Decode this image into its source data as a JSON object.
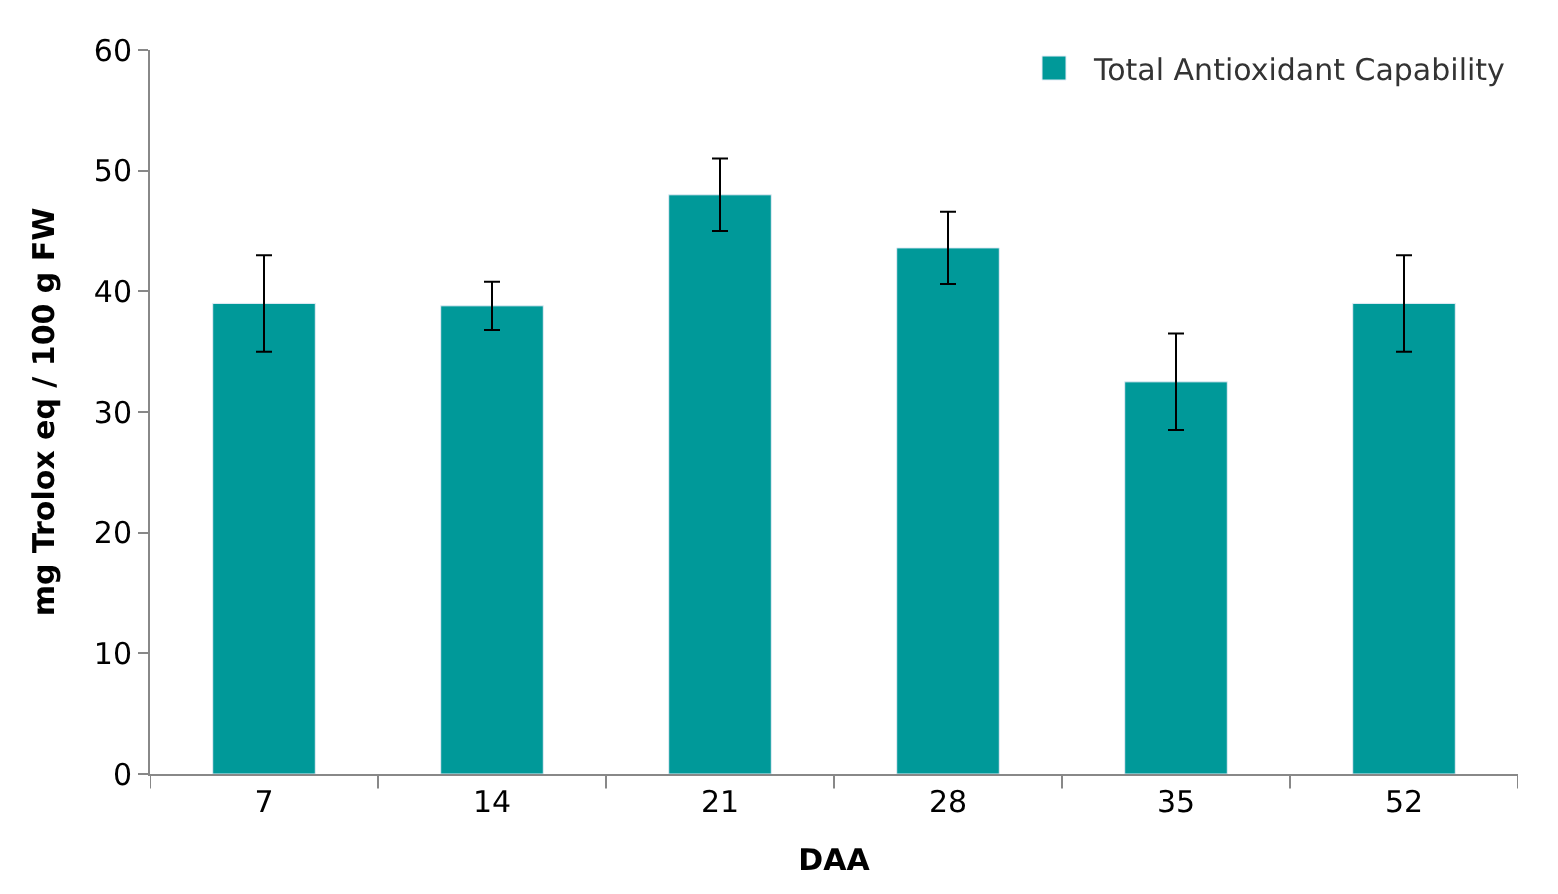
{
  "chart_data": {
    "type": "bar",
    "xlabel": "DAA",
    "ylabel": "mg Trolox eq / 100 g FW",
    "categories": [
      "7",
      "14",
      "21",
      "28",
      "35",
      "52"
    ],
    "series": [
      {
        "name": "Total Antioxidant Capability",
        "color": "#009999",
        "values": [
          39,
          38.8,
          48,
          43.6,
          32.5,
          39
        ],
        "errors": [
          4,
          2,
          3,
          3,
          4,
          4
        ]
      }
    ],
    "ylim": [
      0,
      60
    ],
    "yticks": [
      0,
      10,
      20,
      30,
      40,
      50,
      60
    ],
    "legend": "top right"
  }
}
